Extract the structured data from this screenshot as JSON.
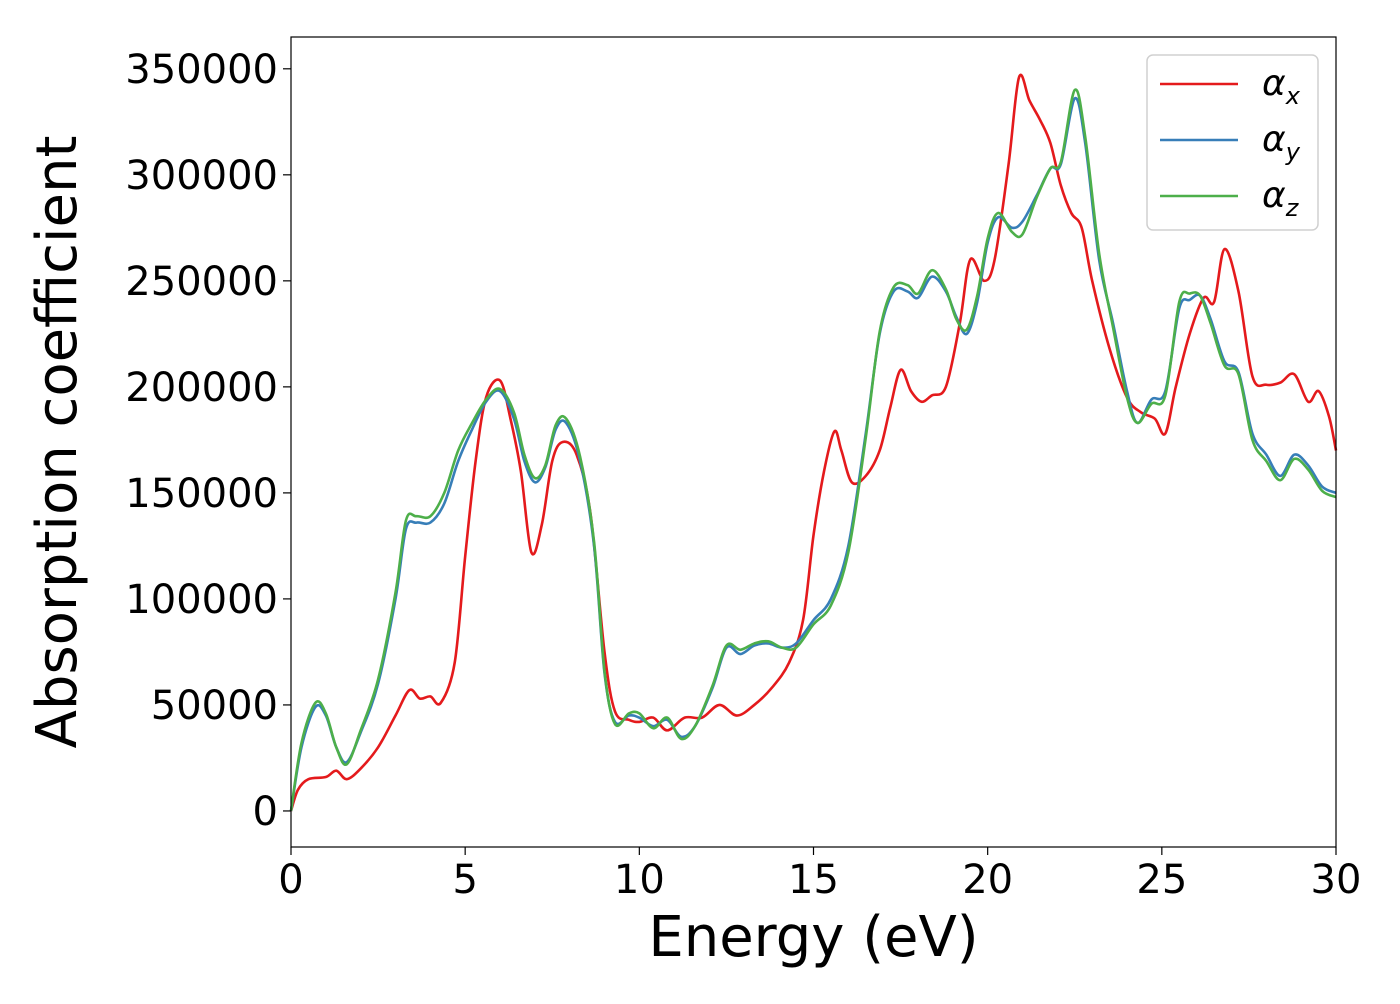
{
  "chart_data": {
    "type": "line",
    "title": "",
    "xlabel": "Energy (eV)",
    "ylabel": "Absorption coefficient",
    "xlim": [
      0,
      30
    ],
    "ylim": [
      -17000,
      365000
    ],
    "x_ticks": [
      0,
      5,
      10,
      15,
      20,
      25,
      30
    ],
    "x_tick_labels": [
      "0",
      "5",
      "10",
      "15",
      "20",
      "25",
      "30"
    ],
    "y_ticks": [
      0,
      50000,
      100000,
      150000,
      200000,
      250000,
      300000,
      350000
    ],
    "y_tick_labels": [
      "0",
      "50000",
      "100000",
      "150000",
      "200000",
      "250000",
      "300000",
      "350000"
    ],
    "grid": false,
    "legend_position": "top-right",
    "series": [
      {
        "name": "αx",
        "legend_base": "α",
        "legend_sub": "x",
        "color": "#e41a1c",
        "points": [
          [
            0,
            0
          ],
          [
            0.2,
            10000
          ],
          [
            0.5,
            15000
          ],
          [
            1.0,
            16000
          ],
          [
            1.3,
            19000
          ],
          [
            1.6,
            15000
          ],
          [
            2.0,
            20000
          ],
          [
            2.5,
            30000
          ],
          [
            3.0,
            45000
          ],
          [
            3.4,
            57000
          ],
          [
            3.7,
            53000
          ],
          [
            4.0,
            54000
          ],
          [
            4.3,
            51000
          ],
          [
            4.7,
            70000
          ],
          [
            5.0,
            120000
          ],
          [
            5.3,
            165000
          ],
          [
            5.6,
            195000
          ],
          [
            6.0,
            203000
          ],
          [
            6.3,
            185000
          ],
          [
            6.6,
            160000
          ],
          [
            6.9,
            122000
          ],
          [
            7.2,
            135000
          ],
          [
            7.5,
            165000
          ],
          [
            7.8,
            174000
          ],
          [
            8.2,
            168000
          ],
          [
            8.6,
            140000
          ],
          [
            9.0,
            75000
          ],
          [
            9.3,
            47000
          ],
          [
            9.7,
            43000
          ],
          [
            10.0,
            42000
          ],
          [
            10.4,
            44000
          ],
          [
            10.8,
            38000
          ],
          [
            11.3,
            44000
          ],
          [
            11.8,
            44000
          ],
          [
            12.3,
            50000
          ],
          [
            12.8,
            45000
          ],
          [
            13.3,
            50000
          ],
          [
            13.8,
            58000
          ],
          [
            14.3,
            70000
          ],
          [
            14.7,
            90000
          ],
          [
            15.0,
            130000
          ],
          [
            15.3,
            160000
          ],
          [
            15.6,
            179000
          ],
          [
            15.8,
            170000
          ],
          [
            16.1,
            155000
          ],
          [
            16.5,
            158000
          ],
          [
            16.9,
            170000
          ],
          [
            17.2,
            190000
          ],
          [
            17.5,
            208000
          ],
          [
            17.8,
            198000
          ],
          [
            18.1,
            193000
          ],
          [
            18.4,
            196000
          ],
          [
            18.8,
            200000
          ],
          [
            19.2,
            230000
          ],
          [
            19.5,
            260000
          ],
          [
            19.9,
            250000
          ],
          [
            20.2,
            260000
          ],
          [
            20.6,
            305000
          ],
          [
            20.9,
            346000
          ],
          [
            21.2,
            335000
          ],
          [
            21.5,
            326000
          ],
          [
            21.8,
            315000
          ],
          [
            22.1,
            295000
          ],
          [
            22.4,
            282000
          ],
          [
            22.7,
            275000
          ],
          [
            23.0,
            250000
          ],
          [
            23.5,
            218000
          ],
          [
            24.0,
            195000
          ],
          [
            24.4,
            188000
          ],
          [
            24.8,
            185000
          ],
          [
            25.1,
            178000
          ],
          [
            25.4,
            200000
          ],
          [
            25.8,
            225000
          ],
          [
            26.2,
            242000
          ],
          [
            26.5,
            240000
          ],
          [
            26.8,
            265000
          ],
          [
            27.2,
            245000
          ],
          [
            27.6,
            205000
          ],
          [
            28.0,
            201000
          ],
          [
            28.4,
            202000
          ],
          [
            28.8,
            206000
          ],
          [
            29.2,
            193000
          ],
          [
            29.5,
            198000
          ],
          [
            29.8,
            186000
          ],
          [
            30.0,
            170000
          ]
        ]
      },
      {
        "name": "αy",
        "legend_base": "α",
        "legend_sub": "y",
        "color": "#377eb8",
        "points": [
          [
            0,
            0
          ],
          [
            0.3,
            30000
          ],
          [
            0.7,
            49000
          ],
          [
            1.0,
            45000
          ],
          [
            1.3,
            30000
          ],
          [
            1.6,
            23000
          ],
          [
            2.0,
            37000
          ],
          [
            2.5,
            60000
          ],
          [
            3.0,
            100000
          ],
          [
            3.3,
            133000
          ],
          [
            3.6,
            136000
          ],
          [
            4.0,
            136000
          ],
          [
            4.4,
            145000
          ],
          [
            4.8,
            165000
          ],
          [
            5.2,
            180000
          ],
          [
            5.6,
            193000
          ],
          [
            6.0,
            198000
          ],
          [
            6.4,
            185000
          ],
          [
            6.7,
            165000
          ],
          [
            7.0,
            155000
          ],
          [
            7.3,
            162000
          ],
          [
            7.6,
            180000
          ],
          [
            7.9,
            183000
          ],
          [
            8.3,
            165000
          ],
          [
            8.7,
            125000
          ],
          [
            9.0,
            65000
          ],
          [
            9.3,
            42000
          ],
          [
            9.7,
            45000
          ],
          [
            10.0,
            44000
          ],
          [
            10.4,
            40000
          ],
          [
            10.8,
            43000
          ],
          [
            11.2,
            35000
          ],
          [
            11.6,
            40000
          ],
          [
            12.1,
            58000
          ],
          [
            12.5,
            77000
          ],
          [
            12.9,
            74000
          ],
          [
            13.3,
            78000
          ],
          [
            13.7,
            79000
          ],
          [
            14.1,
            77000
          ],
          [
            14.5,
            79000
          ],
          [
            15.0,
            90000
          ],
          [
            15.5,
            100000
          ],
          [
            16.0,
            125000
          ],
          [
            16.5,
            178000
          ],
          [
            16.9,
            225000
          ],
          [
            17.3,
            245000
          ],
          [
            17.7,
            245000
          ],
          [
            18.0,
            242000
          ],
          [
            18.4,
            252000
          ],
          [
            18.8,
            245000
          ],
          [
            19.1,
            233000
          ],
          [
            19.4,
            225000
          ],
          [
            19.7,
            240000
          ],
          [
            20.0,
            268000
          ],
          [
            20.3,
            280000
          ],
          [
            20.7,
            275000
          ],
          [
            21.0,
            278000
          ],
          [
            21.4,
            290000
          ],
          [
            21.8,
            303000
          ],
          [
            22.1,
            305000
          ],
          [
            22.5,
            336000
          ],
          [
            22.8,
            315000
          ],
          [
            23.2,
            260000
          ],
          [
            23.6,
            230000
          ],
          [
            24.0,
            198000
          ],
          [
            24.3,
            183000
          ],
          [
            24.7,
            194000
          ],
          [
            25.1,
            198000
          ],
          [
            25.5,
            237000
          ],
          [
            25.8,
            241000
          ],
          [
            26.1,
            243000
          ],
          [
            26.4,
            232000
          ],
          [
            26.8,
            212000
          ],
          [
            27.2,
            207000
          ],
          [
            27.6,
            178000
          ],
          [
            28.0,
            168000
          ],
          [
            28.4,
            158000
          ],
          [
            28.8,
            168000
          ],
          [
            29.2,
            163000
          ],
          [
            29.6,
            153000
          ],
          [
            30.0,
            150000
          ]
        ]
      },
      {
        "name": "αz",
        "legend_base": "α",
        "legend_sub": "z",
        "color": "#4daf4a",
        "points": [
          [
            0,
            0
          ],
          [
            0.3,
            32000
          ],
          [
            0.7,
            51000
          ],
          [
            1.0,
            46000
          ],
          [
            1.3,
            30000
          ],
          [
            1.6,
            22000
          ],
          [
            2.0,
            38000
          ],
          [
            2.5,
            62000
          ],
          [
            3.0,
            103000
          ],
          [
            3.3,
            137000
          ],
          [
            3.6,
            139000
          ],
          [
            4.0,
            139000
          ],
          [
            4.4,
            150000
          ],
          [
            4.8,
            170000
          ],
          [
            5.2,
            183000
          ],
          [
            5.6,
            194000
          ],
          [
            6.0,
            199000
          ],
          [
            6.4,
            188000
          ],
          [
            6.7,
            168000
          ],
          [
            7.0,
            157000
          ],
          [
            7.3,
            163000
          ],
          [
            7.6,
            182000
          ],
          [
            7.9,
            185000
          ],
          [
            8.3,
            167000
          ],
          [
            8.7,
            127000
          ],
          [
            9.0,
            66000
          ],
          [
            9.3,
            41000
          ],
          [
            9.7,
            46000
          ],
          [
            10.0,
            46000
          ],
          [
            10.4,
            39000
          ],
          [
            10.8,
            44000
          ],
          [
            11.2,
            34000
          ],
          [
            11.6,
            40000
          ],
          [
            12.1,
            59000
          ],
          [
            12.5,
            78000
          ],
          [
            12.9,
            76000
          ],
          [
            13.3,
            79000
          ],
          [
            13.7,
            80000
          ],
          [
            14.1,
            77000
          ],
          [
            14.5,
            77000
          ],
          [
            15.0,
            88000
          ],
          [
            15.5,
            97000
          ],
          [
            16.0,
            122000
          ],
          [
            16.5,
            176000
          ],
          [
            16.9,
            226000
          ],
          [
            17.3,
            247000
          ],
          [
            17.7,
            248000
          ],
          [
            18.0,
            244000
          ],
          [
            18.4,
            255000
          ],
          [
            18.8,
            246000
          ],
          [
            19.1,
            232000
          ],
          [
            19.4,
            227000
          ],
          [
            19.7,
            243000
          ],
          [
            20.0,
            270000
          ],
          [
            20.3,
            282000
          ],
          [
            20.7,
            273000
          ],
          [
            21.0,
            272000
          ],
          [
            21.4,
            289000
          ],
          [
            21.8,
            303000
          ],
          [
            22.1,
            306000
          ],
          [
            22.5,
            340000
          ],
          [
            22.8,
            318000
          ],
          [
            23.2,
            263000
          ],
          [
            23.6,
            228000
          ],
          [
            24.0,
            195000
          ],
          [
            24.3,
            183000
          ],
          [
            24.7,
            192000
          ],
          [
            25.1,
            196000
          ],
          [
            25.5,
            240000
          ],
          [
            25.8,
            244000
          ],
          [
            26.1,
            243000
          ],
          [
            26.4,
            230000
          ],
          [
            26.8,
            210000
          ],
          [
            27.2,
            206000
          ],
          [
            27.6,
            175000
          ],
          [
            28.0,
            165000
          ],
          [
            28.4,
            156000
          ],
          [
            28.8,
            166000
          ],
          [
            29.2,
            161000
          ],
          [
            29.6,
            151000
          ],
          [
            30.0,
            148000
          ]
        ]
      }
    ]
  }
}
